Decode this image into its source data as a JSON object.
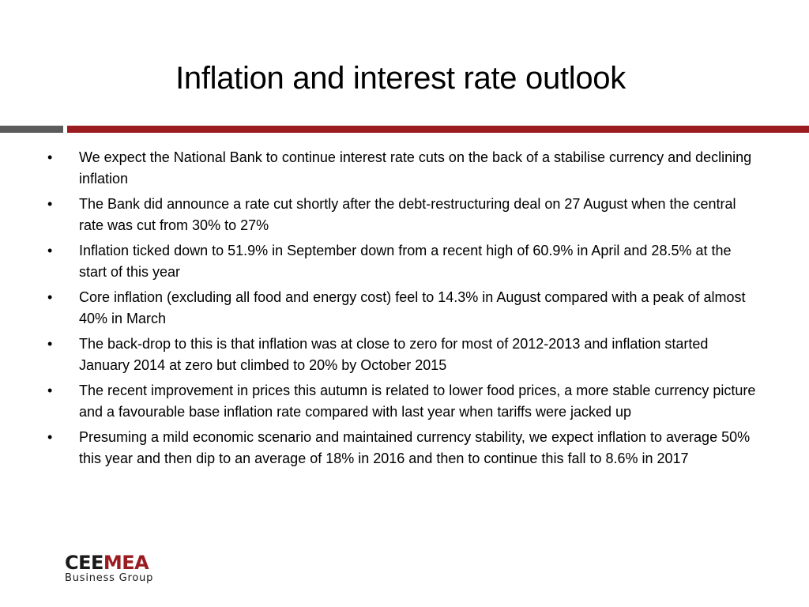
{
  "slide": {
    "title": "Inflation and interest rate outlook",
    "bullet_symbol": "•",
    "bullets": [
      "We expect the National Bank to continue interest rate cuts on the back of a stabilise currency and declining inflation",
      "The Bank did announce a rate cut shortly after the debt-restructuring deal on 27 August when the central rate was cut from 30% to 27%",
      "Inflation ticked down to 51.9% in September down from a recent high of 60.9% in April and 28.5% at the start of this year",
      "Core inflation (excluding all food and energy cost) feel to 14.3% in August compared with a peak of almost 40% in March",
      "The back-drop to this is that inflation was at close to zero for most of 2012-2013 and inflation started January 2014 at zero but climbed to 20% by October 2015",
      "The recent improvement in prices this autumn is related to lower food prices, a more stable currency picture and a favourable base inflation rate compared with last year when tariffs were jacked up",
      "Presuming a mild economic scenario and maintained currency stability, we expect inflation to average 50% this year and then dip to an average of 18% in 2016 and then to continue this fall to 8.6% in 2017"
    ]
  },
  "logo": {
    "part1": "CEE",
    "part2": "MEA",
    "subtitle": "Business Group"
  },
  "colors": {
    "accent_red": "#9a1c20",
    "divider_grey": "#5b5b5b",
    "text": "#000000"
  }
}
